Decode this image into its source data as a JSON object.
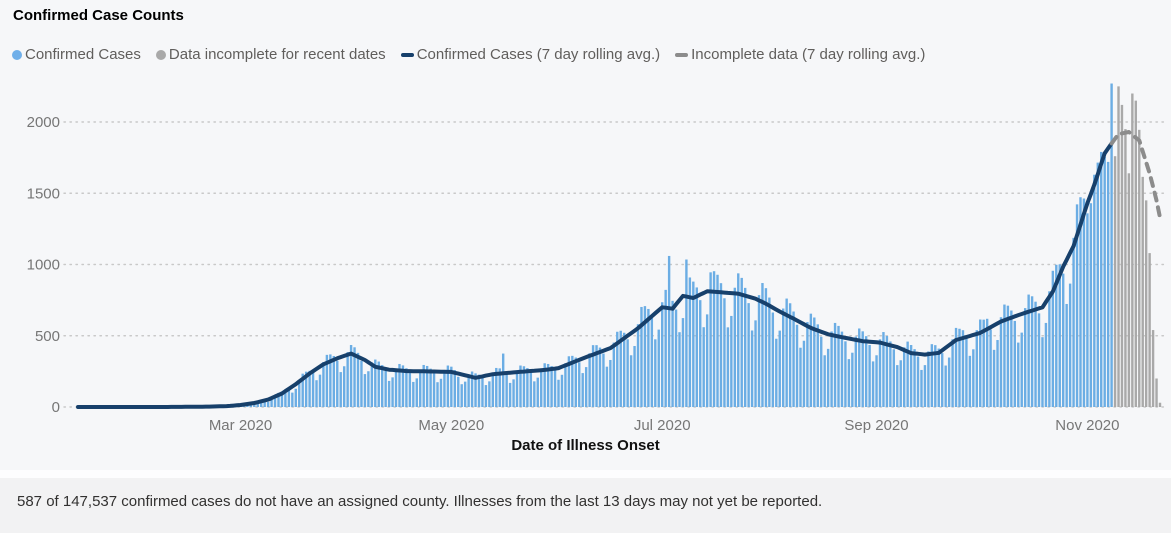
{
  "title": "Confirmed Case Counts",
  "legend": [
    {
      "label": "Confirmed Cases",
      "marker": "dot",
      "color": "#6fafe9"
    },
    {
      "label": "Data incomplete for recent dates",
      "marker": "dot",
      "color": "#a9a9a9"
    },
    {
      "label": "Confirmed Cases (7 day rolling avg.)",
      "marker": "dash",
      "color": "#17406b"
    },
    {
      "label": "Incomplete data (7 day rolling avg.)",
      "marker": "dash",
      "color": "#8c8c8c"
    }
  ],
  "footer": {
    "text": "587 of 147,537 confirmed cases do not have an assigned county. Illnesses from the last 13 days may not yet be reported."
  },
  "chart_data": {
    "type": "bar",
    "title": "Confirmed Case Counts",
    "xlabel": "Date of Illness Onset",
    "ylabel": "",
    "grid": "dotted-horizontal",
    "legend_position": "top",
    "x_axis": {
      "label": "Date of Illness Onset",
      "start_date": "2020-01-14",
      "ticks": [
        {
          "label": "Mar 2020",
          "day_index": 47
        },
        {
          "label": "May 2020",
          "day_index": 108
        },
        {
          "label": "Jul 2020",
          "day_index": 169
        },
        {
          "label": "Sep 2020",
          "day_index": 231
        },
        {
          "label": "Nov 2020",
          "day_index": 292
        }
      ]
    },
    "y_axis": {
      "ticks": [
        0,
        500,
        1000,
        1500,
        2000
      ],
      "range": [
        0,
        2270
      ]
    },
    "bars": {
      "unit": "confirmed cases per day (estimated from pixels)",
      "confirmed_color": "#6badе4",
      "color_confirmed": "#6bade4",
      "color_incomplete": "#a9a9a9",
      "incomplete_start_index": 300,
      "values": [
        0,
        0,
        0,
        0,
        0,
        0,
        0,
        0,
        0,
        0,
        0,
        0,
        0,
        0,
        0,
        0,
        0,
        0,
        0,
        0,
        0,
        0,
        0,
        0,
        0,
        0,
        0,
        1,
        1,
        1,
        1,
        1,
        1,
        2,
        2,
        2,
        2,
        4,
        4,
        4,
        4,
        3,
        4,
        8,
        12,
        12,
        13,
        13,
        12,
        17,
        26,
        33,
        39,
        43,
        44,
        36,
        50,
        77,
        99,
        109,
        120,
        121,
        101,
        128,
        188,
        234,
        248,
        254,
        238,
        188,
        227,
        315,
        366,
        369,
        358,
        325,
        245,
        286,
        385,
        435,
        419,
        380,
        324,
        231,
        251,
        313,
        333,
        319,
        294,
        254,
        183,
        208,
        271,
        302,
        292,
        272,
        239,
        176,
        201,
        263,
        295,
        288,
        269,
        237,
        174,
        198,
        259,
        291,
        283,
        259,
        212,
        160,
        178,
        228,
        249,
        236,
        227,
        204,
        154,
        180,
        242,
        274,
        271,
        375,
        229,
        169,
        194,
        257,
        291,
        286,
        273,
        240,
        180,
        206,
        271,
        307,
        302,
        287,
        256,
        191,
        226,
        307,
        356,
        359,
        347,
        314,
        238,
        280,
        377,
        434,
        434,
        417,
        375,
        283,
        330,
        452,
        528,
        535,
        521,
        475,
        363,
        428,
        581,
        702,
        708,
        688,
        625,
        475,
        543,
        735,
        822,
        1060,
        745,
        684,
        525,
        624,
        1035,
        909,
        880,
        839,
        750,
        560,
        650,
        945,
        953,
        928,
        869,
        763,
        559,
        639,
        837,
        938,
        906,
        836,
        729,
        537,
        608,
        785,
        870,
        834,
        768,
        663,
        479,
        536,
        691,
        761,
        728,
        670,
        577,
        416,
        465,
        596,
        655,
        628,
        580,
        493,
        363,
        408,
        530,
        590,
        569,
        529,
        461,
        336,
        381,
        494,
        551,
        531,
        497,
        435,
        320,
        363,
        475,
        526,
        498,
        460,
        405,
        294,
        328,
        419,
        459,
        435,
        406,
        354,
        260,
        294,
        390,
        441,
        434,
        410,
        378,
        291,
        347,
        475,
        555,
        549,
        539,
        481,
        359,
        405,
        539,
        614,
        613,
        619,
        544,
        401,
        470,
        630,
        719,
        711,
        677,
        604,
        452,
        522,
        694,
        789,
        777,
        739,
        657,
        490,
        590,
        812,
        956,
        998,
        1001,
        936,
        723,
        866,
        1187,
        1422,
        1472,
        1463,
        1359,
        1430,
        1630,
        1715,
        1790,
        1755,
        1720,
        2270,
        1760,
        2250,
        2120,
        1950,
        1640,
        2200,
        2150,
        1945,
        1615,
        1450,
        1080,
        540,
        200,
        30
      ]
    },
    "rolling_avg": {
      "solid_color": "#17406b",
      "dashed_color": "#8c8c8c",
      "dashed_start_index": 299,
      "anchors": [
        [
          0,
          0
        ],
        [
          25,
          0
        ],
        [
          36,
          2
        ],
        [
          43,
          6
        ],
        [
          47,
          14
        ],
        [
          51,
          28
        ],
        [
          55,
          52
        ],
        [
          59,
          95
        ],
        [
          63,
          160
        ],
        [
          67,
          235
        ],
        [
          71,
          300
        ],
        [
          75,
          342
        ],
        [
          79,
          375
        ],
        [
          83,
          330
        ],
        [
          86,
          282
        ],
        [
          90,
          262
        ],
        [
          95,
          252
        ],
        [
          101,
          250
        ],
        [
          108,
          246
        ],
        [
          115,
          205
        ],
        [
          120,
          230
        ],
        [
          127,
          245
        ],
        [
          135,
          260
        ],
        [
          139,
          273
        ],
        [
          147,
          350
        ],
        [
          154,
          413
        ],
        [
          162,
          553
        ],
        [
          169,
          700
        ],
        [
          172,
          690
        ],
        [
          175,
          780
        ],
        [
          178,
          765
        ],
        [
          182,
          812
        ],
        [
          186,
          805
        ],
        [
          191,
          795
        ],
        [
          196,
          760
        ],
        [
          199,
          725
        ],
        [
          203,
          670
        ],
        [
          207,
          620
        ],
        [
          212,
          555
        ],
        [
          217,
          510
        ],
        [
          222,
          485
        ],
        [
          227,
          462
        ],
        [
          232,
          452
        ],
        [
          237,
          420
        ],
        [
          241,
          378
        ],
        [
          245,
          368
        ],
        [
          249,
          380
        ],
        [
          254,
          470
        ],
        [
          261,
          520
        ],
        [
          267,
          600
        ],
        [
          272,
          645
        ],
        [
          279,
          700
        ],
        [
          282,
          810
        ],
        [
          285,
          985
        ],
        [
          288,
          1130
        ],
        [
          292,
          1430
        ],
        [
          294,
          1560
        ],
        [
          297,
          1780
        ],
        [
          299,
          1850
        ],
        [
          301,
          1915
        ],
        [
          304,
          1930
        ],
        [
          307,
          1870
        ],
        [
          310,
          1640
        ],
        [
          312,
          1450
        ],
        [
          313,
          1330
        ]
      ]
    }
  }
}
